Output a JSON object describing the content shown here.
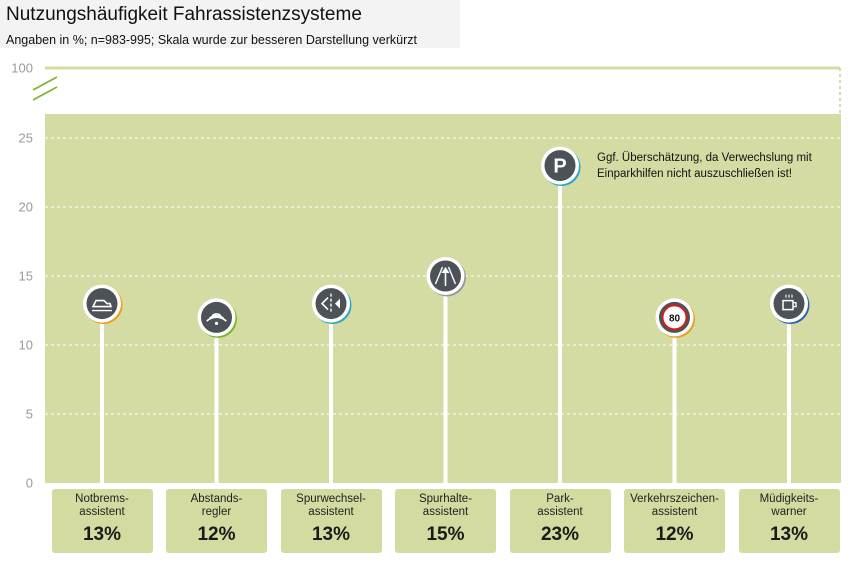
{
  "title": "Nutzungshäufigkeit Fahrassistenzsysteme",
  "subtitle": "Angaben in %; n=983-995; Skala wurde zur besseren Darstellung verkürzt",
  "chart_data": {
    "type": "bar",
    "title": "Nutzungshäufigkeit Fahrassistenzsysteme",
    "subtitle": "Angaben in %; n=983-995; Skala wurde zur besseren Darstellung verkürzt",
    "categories": [
      "Notbrems-\nassistent",
      "Abstands-\nregler",
      "Spurwechsel-\nassistent",
      "Spurhalte-\nassistent",
      "Park-\nassistent",
      "Verkehrszeichen-\nassistent",
      "Müdigkeits-\nwarner"
    ],
    "values": [
      13,
      12,
      13,
      15,
      23,
      12,
      13
    ],
    "value_labels": [
      "13%",
      "12%",
      "13%",
      "15%",
      "23%",
      "12%",
      "13%"
    ],
    "icons": [
      "car-brake-icon",
      "distance-wave-icon",
      "lane-change-icon",
      "lane-keep-icon",
      "parking-icon",
      "speed-sign-80-icon",
      "coffee-cup-icon"
    ],
    "icon_texts": [
      "",
      "",
      "",
      "",
      "P",
      "80",
      ""
    ],
    "yticks": [
      "0",
      "5",
      "10",
      "15",
      "20",
      "25",
      "100"
    ],
    "ylim": [
      0,
      26.5
    ],
    "axis_break": true,
    "axis_top_label": "100",
    "grid": true,
    "annotation": "Ggf. Überschätzung, da Verwechslung mit\nEinparkhilfen nicht auszuschließen ist!",
    "colors": {
      "plot_background": "#d5dca3",
      "grid": "#ffffff",
      "stem": "#ffffff",
      "label_box": "#d3dba1",
      "icon_fill": "#4d5259"
    }
  }
}
